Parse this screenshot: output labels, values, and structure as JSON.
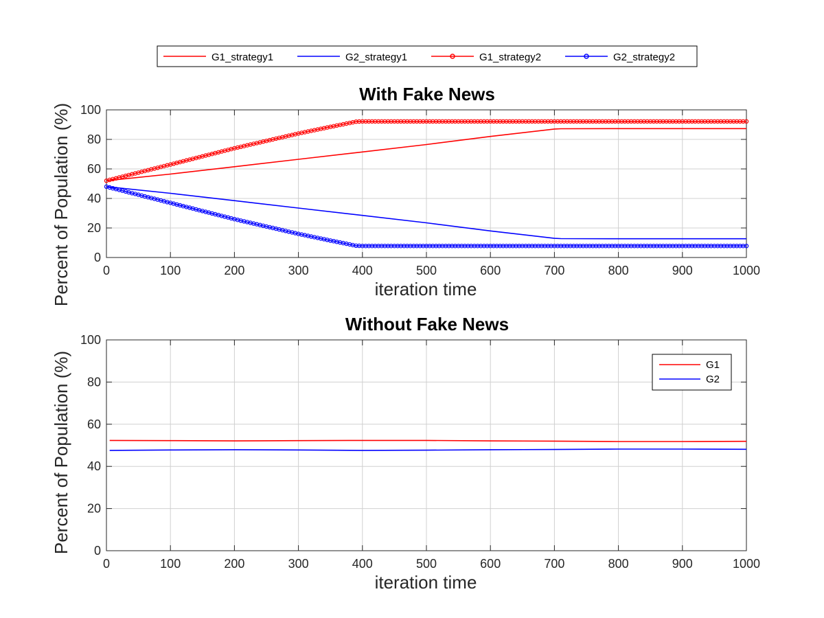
{
  "figure": {
    "top_legend": [
      "G1_strategy1",
      "G2_strategy1",
      "G1_strategy2",
      "G2_strategy2"
    ]
  },
  "colors": {
    "g1": "#ff0000",
    "g2": "#0000ff",
    "grid": "#d0d0d0",
    "axis": "#262626"
  },
  "chart_data": [
    {
      "type": "line",
      "title": "With Fake News",
      "xlabel": "iteration time",
      "ylabel": "Percent of Population (%)",
      "xlim": [
        0,
        1000
      ],
      "ylim": [
        0,
        100
      ],
      "xticks": [
        0,
        100,
        200,
        300,
        400,
        500,
        600,
        700,
        800,
        900,
        1000
      ],
      "yticks": [
        0,
        20,
        40,
        60,
        80,
        100
      ],
      "grid": true,
      "legend_placement": "top-center outside",
      "series": [
        {
          "name": "G1_strategy1",
          "color": "#ff0000",
          "marker": "none",
          "x": [
            0,
            100,
            200,
            300,
            400,
            500,
            600,
            700,
            710,
            800,
            900,
            1000
          ],
          "y": [
            52,
            56.5,
            61.5,
            66.5,
            71.5,
            76.5,
            82,
            87,
            87.2,
            87.3,
            87.3,
            87.3
          ]
        },
        {
          "name": "G2_strategy1",
          "color": "#0000ff",
          "marker": "none",
          "x": [
            0,
            100,
            200,
            300,
            400,
            500,
            600,
            700,
            710,
            800,
            900,
            1000
          ],
          "y": [
            48,
            43.5,
            38.5,
            33.5,
            28.5,
            23.5,
            18,
            13,
            12.8,
            12.7,
            12.7,
            12.7
          ]
        },
        {
          "name": "G1_strategy2",
          "color": "#ff0000",
          "marker": "circle",
          "x": [
            0,
            50,
            100,
            150,
            200,
            250,
            300,
            350,
            390,
            400,
            500,
            600,
            700,
            800,
            900,
            1000
          ],
          "y": [
            52,
            57.5,
            63,
            68.5,
            74,
            79,
            84,
            88.5,
            92,
            92.2,
            92.2,
            92.2,
            92.2,
            92.2,
            92.2,
            92.2
          ]
        },
        {
          "name": "G2_strategy2",
          "color": "#0000ff",
          "marker": "circle",
          "x": [
            0,
            50,
            100,
            150,
            200,
            250,
            300,
            350,
            390,
            400,
            500,
            600,
            700,
            800,
            900,
            1000
          ],
          "y": [
            48,
            42.5,
            37,
            31.5,
            26,
            21,
            16,
            11.5,
            8,
            7.8,
            7.8,
            7.8,
            7.8,
            7.8,
            7.8,
            7.8
          ]
        }
      ]
    },
    {
      "type": "line",
      "title": "Without Fake News",
      "xlabel": "iteration time",
      "ylabel": "Percent of Population (%)",
      "xlim": [
        0,
        1000
      ],
      "ylim": [
        0,
        100
      ],
      "xticks": [
        0,
        100,
        200,
        300,
        400,
        500,
        600,
        700,
        800,
        900,
        1000
      ],
      "yticks": [
        0,
        20,
        40,
        60,
        80,
        100
      ],
      "grid": true,
      "legend_placement": "top-right",
      "series": [
        {
          "name": "G1",
          "color": "#ff0000",
          "marker": "none",
          "x": [
            5,
            100,
            200,
            300,
            400,
            500,
            600,
            700,
            800,
            900,
            1000
          ],
          "y": [
            52.3,
            52.2,
            52.1,
            52.2,
            52.3,
            52.3,
            52.1,
            52.0,
            51.8,
            51.8,
            51.9
          ]
        },
        {
          "name": "G2",
          "color": "#0000ff",
          "marker": "none",
          "x": [
            5,
            100,
            200,
            300,
            400,
            500,
            600,
            700,
            800,
            900,
            1000
          ],
          "y": [
            47.6,
            47.8,
            47.9,
            47.8,
            47.6,
            47.7,
            47.9,
            48.0,
            48.2,
            48.2,
            48.1
          ]
        }
      ]
    }
  ]
}
